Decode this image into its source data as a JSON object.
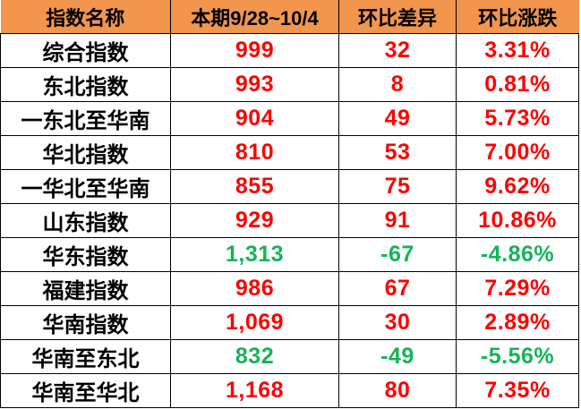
{
  "colors": {
    "header_bg": "#F2954D",
    "header_text": "#000000",
    "name_text": "#000000",
    "up": "#FE0000",
    "down": "#16B359",
    "border": "#000000",
    "row_bg": "#FFFFFF"
  },
  "table": {
    "headers": [
      "指数名称",
      "本期9/28~10/4",
      "环比差异",
      "环比涨跌"
    ],
    "rows": [
      {
        "name": "综合指数",
        "current": "999",
        "diff": "32",
        "pct": "3.31%",
        "trend": "up"
      },
      {
        "name": "东北指数",
        "current": "993",
        "diff": "8",
        "pct": "0.81%",
        "trend": "up"
      },
      {
        "name": "一东北至华南",
        "current": "904",
        "diff": "49",
        "pct": "5.73%",
        "trend": "up"
      },
      {
        "name": "华北指数",
        "current": "810",
        "diff": "53",
        "pct": "7.00%",
        "trend": "up"
      },
      {
        "name": "一华北至华南",
        "current": "855",
        "diff": "75",
        "pct": "9.62%",
        "trend": "up"
      },
      {
        "name": "山东指数",
        "current": "929",
        "diff": "91",
        "pct": "10.86%",
        "trend": "up"
      },
      {
        "name": "华东指数",
        "current": "1,313",
        "diff": "-67",
        "pct": "-4.86%",
        "trend": "down"
      },
      {
        "name": "福建指数",
        "current": "986",
        "diff": "67",
        "pct": "7.29%",
        "trend": "up"
      },
      {
        "name": "华南指数",
        "current": "1,069",
        "diff": "30",
        "pct": "2.89%",
        "trend": "up"
      },
      {
        "name": "华南至东北",
        "current": "832",
        "diff": "-49",
        "pct": "-5.56%",
        "trend": "down"
      },
      {
        "name": "华南至华北",
        "current": "1,168",
        "diff": "80",
        "pct": "7.35%",
        "trend": "up"
      }
    ]
  },
  "chart_data": {
    "type": "table",
    "title": "",
    "columns": [
      "指数名称",
      "本期9/28~10/4",
      "环比差异",
      "环比涨跌"
    ],
    "rows": [
      [
        "综合指数",
        "999",
        "32",
        "3.31%"
      ],
      [
        "东北指数",
        "993",
        "8",
        "0.81%"
      ],
      [
        "一东北至华南",
        "904",
        "49",
        "5.73%"
      ],
      [
        "华北指数",
        "810",
        "53",
        "7.00%"
      ],
      [
        "一华北至华南",
        "855",
        "75",
        "9.62%"
      ],
      [
        "山东指数",
        "929",
        "91",
        "10.86%"
      ],
      [
        "华东指数",
        "1,313",
        "-67",
        "-4.86%"
      ],
      [
        "福建指数",
        "986",
        "67",
        "7.29%"
      ],
      [
        "华南指数",
        "1,069",
        "30",
        "2.89%"
      ],
      [
        "华南至东北",
        "832",
        "-49",
        "-5.56%"
      ],
      [
        "华南至华北",
        "1,168",
        "80",
        "7.35%"
      ]
    ],
    "notes": "Positive changes rendered red, negative changes rendered green; header row orange."
  }
}
